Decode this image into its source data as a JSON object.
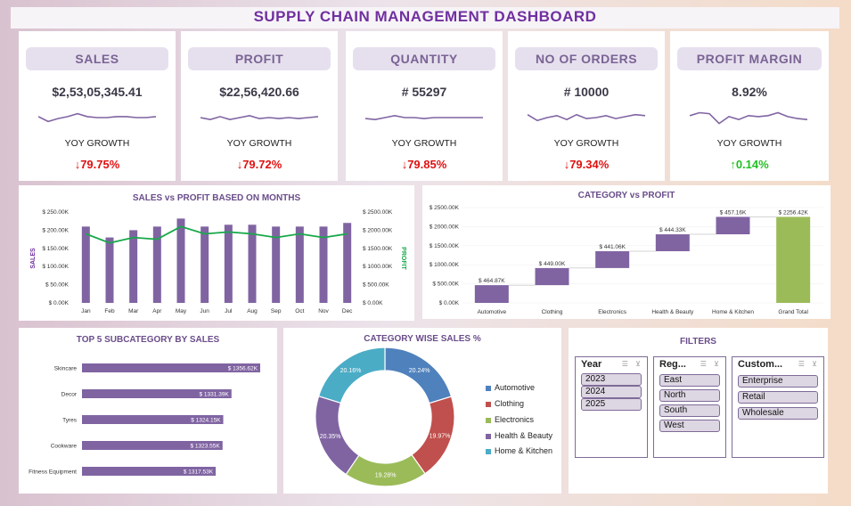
{
  "title": "SUPPLY CHAIN MANAGEMENT DASHBOARD",
  "kpis": [
    {
      "label": "SALES",
      "value": "$2,53,05,345.41",
      "yoy_label": "YOY GROWTH",
      "growth": "↓79.75%",
      "growth_dir": "down",
      "spark": [
        0.55,
        0.3,
        0.45,
        0.55,
        0.7,
        0.55,
        0.5,
        0.5,
        0.55,
        0.55,
        0.5,
        0.5,
        0.55
      ]
    },
    {
      "label": "PROFIT",
      "value": "$22,56,420.66",
      "yoy_label": "YOY GROWTH",
      "growth": "↓79.72%",
      "growth_dir": "down",
      "spark": [
        0.5,
        0.4,
        0.55,
        0.4,
        0.5,
        0.6,
        0.45,
        0.5,
        0.45,
        0.5,
        0.45,
        0.5,
        0.55
      ]
    },
    {
      "label": "QUANTITY",
      "value": "# 55297",
      "yoy_label": "YOY GROWTH",
      "growth": "↓79.85%",
      "growth_dir": "down",
      "spark": [
        0.45,
        0.4,
        0.5,
        0.6,
        0.5,
        0.5,
        0.45,
        0.5,
        0.5,
        0.5,
        0.5,
        0.5,
        0.5
      ]
    },
    {
      "label": "NO OF ORDERS",
      "value": "# 10000",
      "yoy_label": "YOY GROWTH",
      "growth": "↓79.34%",
      "growth_dir": "down",
      "spark": [
        0.65,
        0.35,
        0.5,
        0.6,
        0.4,
        0.65,
        0.45,
        0.5,
        0.6,
        0.45,
        0.55,
        0.65,
        0.6
      ]
    },
    {
      "label": "PROFIT MARGIN",
      "value": "8.92%",
      "yoy_label": "YOY GROWTH",
      "growth": "↑0.14%",
      "growth_dir": "up",
      "spark": [
        0.6,
        0.75,
        0.7,
        0.2,
        0.55,
        0.4,
        0.6,
        0.55,
        0.6,
        0.75,
        0.55,
        0.45,
        0.4
      ]
    }
  ],
  "colors": {
    "purple": "#8064a2",
    "green_line": "#18a84a",
    "waterfall_total": "#9bbb59",
    "title": "#7030a0"
  },
  "chart_data": [
    {
      "type": "bar",
      "title": "SALES vs PROFIT BASED ON MONTHS",
      "categories": [
        "Jan",
        "Feb",
        "Mar",
        "Apr",
        "May",
        "Jun",
        "Jul",
        "Aug",
        "Sep",
        "Oct",
        "Nov",
        "Dec"
      ],
      "series": [
        {
          "name": "SALES",
          "values": [
            210,
            180,
            200,
            210,
            232,
            210,
            215,
            215,
            210,
            210,
            210,
            220
          ]
        },
        {
          "name": "PROFIT",
          "values": [
            1900,
            1650,
            1800,
            1750,
            2100,
            1900,
            1950,
            1900,
            1800,
            1900,
            1800,
            1900
          ]
        }
      ],
      "ylabel": "SALES",
      "y2label": "PROFIT",
      "ylim": [
        0,
        250
      ],
      "y2lim": [
        0,
        2500
      ],
      "yticks": [
        "$ 0.00K",
        "$ 50.00K",
        "$ 100.00K",
        "$ 150.00K",
        "$ 200.00K",
        "$ 250.00K"
      ],
      "y2ticks": [
        "$ 0.00K",
        "$ 500.00K",
        "$ 1000.00K",
        "$ 1500.00K",
        "$ 2000.00K",
        "$ 2500.00K"
      ]
    },
    {
      "type": "bar",
      "subtype": "waterfall",
      "title": "CATEGORY vs PROFIT",
      "categories": [
        "Automotive",
        "Clothing",
        "Electronics",
        "Health & Beauty",
        "Home & Kitchen",
        "Grand Total"
      ],
      "values": [
        464.87,
        449.0,
        441.06,
        444.33,
        457.16,
        2256.42
      ],
      "labels": [
        "$ 464.87K",
        "$ 449.00K",
        "$ 441.06K",
        "$ 444.33K",
        "$ 457.16K",
        "$ 2256.42K"
      ],
      "ylim": [
        0,
        2500
      ],
      "yticks": [
        "$ 0.00K",
        "$ 500.00K",
        "$ 1000.00K",
        "$ 1500.00K",
        "$ 2000.00K",
        "$ 2500.00K"
      ]
    },
    {
      "type": "bar",
      "orientation": "horizontal",
      "title": "TOP 5 SUBCATEGORY BY SALES",
      "categories": [
        "Skincare",
        "Decor",
        "Tyres",
        "Cookware",
        "Fitness Equipment"
      ],
      "values": [
        1356.62,
        1331.39,
        1324.15,
        1323.55,
        1317.53
      ],
      "labels": [
        "$ 1356.62K",
        "$ 1331.39K",
        "$ 1324.15K",
        "$ 1323.55K",
        "$ 1317.53K"
      ]
    },
    {
      "type": "pie",
      "subtype": "donut",
      "title": "CATEGORY WISE SALES %",
      "categories": [
        "Automotive",
        "Clothing",
        "Electronics",
        "Health & Beauty",
        "Home & Kitchen"
      ],
      "values": [
        20.24,
        19.97,
        19.28,
        20.35,
        20.16
      ],
      "labels": [
        "20.24%",
        "19.97%",
        "19.28%",
        "20.35%",
        "20.16%"
      ],
      "colors": [
        "#4f81bd",
        "#c0504d",
        "#9bbb59",
        "#8064a2",
        "#4bacc6"
      ],
      "legend": "right"
    }
  ],
  "filters": {
    "title": "FILTERS",
    "slicers": [
      {
        "label": "Year",
        "items": [
          "2023",
          "2024",
          "2025"
        ]
      },
      {
        "label": "Reg...",
        "items": [
          "East",
          "North",
          "South",
          "West"
        ]
      },
      {
        "label": "Custom...",
        "items": [
          "Enterprise",
          "Retail",
          "Wholesale"
        ]
      }
    ]
  }
}
